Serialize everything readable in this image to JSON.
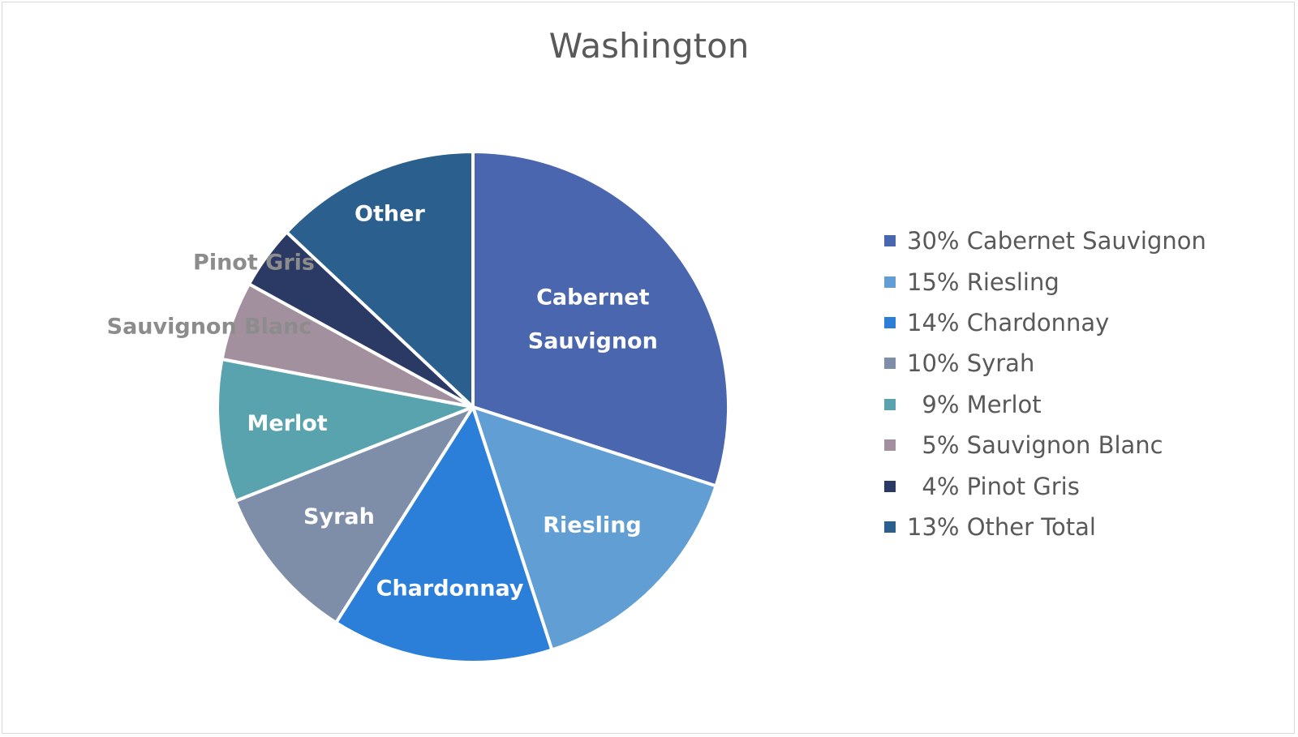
{
  "chart_data": {
    "type": "pie",
    "title": "Washington",
    "legend_position": "right",
    "slices": [
      {
        "label": "Cabernet Sauvignon",
        "value": 30,
        "percent_label": "30%",
        "legend_label": "Cabernet Sauvignon",
        "color": "#4a66ae",
        "label_color": "#ffffff"
      },
      {
        "label": "Riesling",
        "value": 15,
        "percent_label": "15%",
        "legend_label": "Riesling",
        "color": "#619ed4",
        "label_color": "#ffffff"
      },
      {
        "label": "Chardonnay",
        "value": 14,
        "percent_label": "14%",
        "legend_label": "Chardonnay",
        "color": "#2c7fd8",
        "label_color": "#ffffff"
      },
      {
        "label": "Syrah",
        "value": 10,
        "percent_label": "10%",
        "legend_label": "Syrah",
        "color": "#7f8ea8",
        "label_color": "#ffffff"
      },
      {
        "label": "Merlot",
        "value": 9,
        "percent_label": "9%",
        "legend_label": "Merlot",
        "color": "#58a3ad",
        "label_color": "#ffffff"
      },
      {
        "label": "Sauvignon Blanc",
        "value": 5,
        "percent_label": "5%",
        "legend_label": "Sauvignon Blanc",
        "color": "#a2909e",
        "label_color": "#8c8c8c"
      },
      {
        "label": "Pinot Gris",
        "value": 4,
        "percent_label": "4%",
        "legend_label": "Pinot Gris",
        "color": "#2b3a64",
        "label_color": "#8c8c8c"
      },
      {
        "label": "Other",
        "value": 13,
        "percent_label": "13%",
        "legend_label": "Other Total",
        "color": "#2b5f8d",
        "label_color": "#ffffff"
      }
    ]
  }
}
